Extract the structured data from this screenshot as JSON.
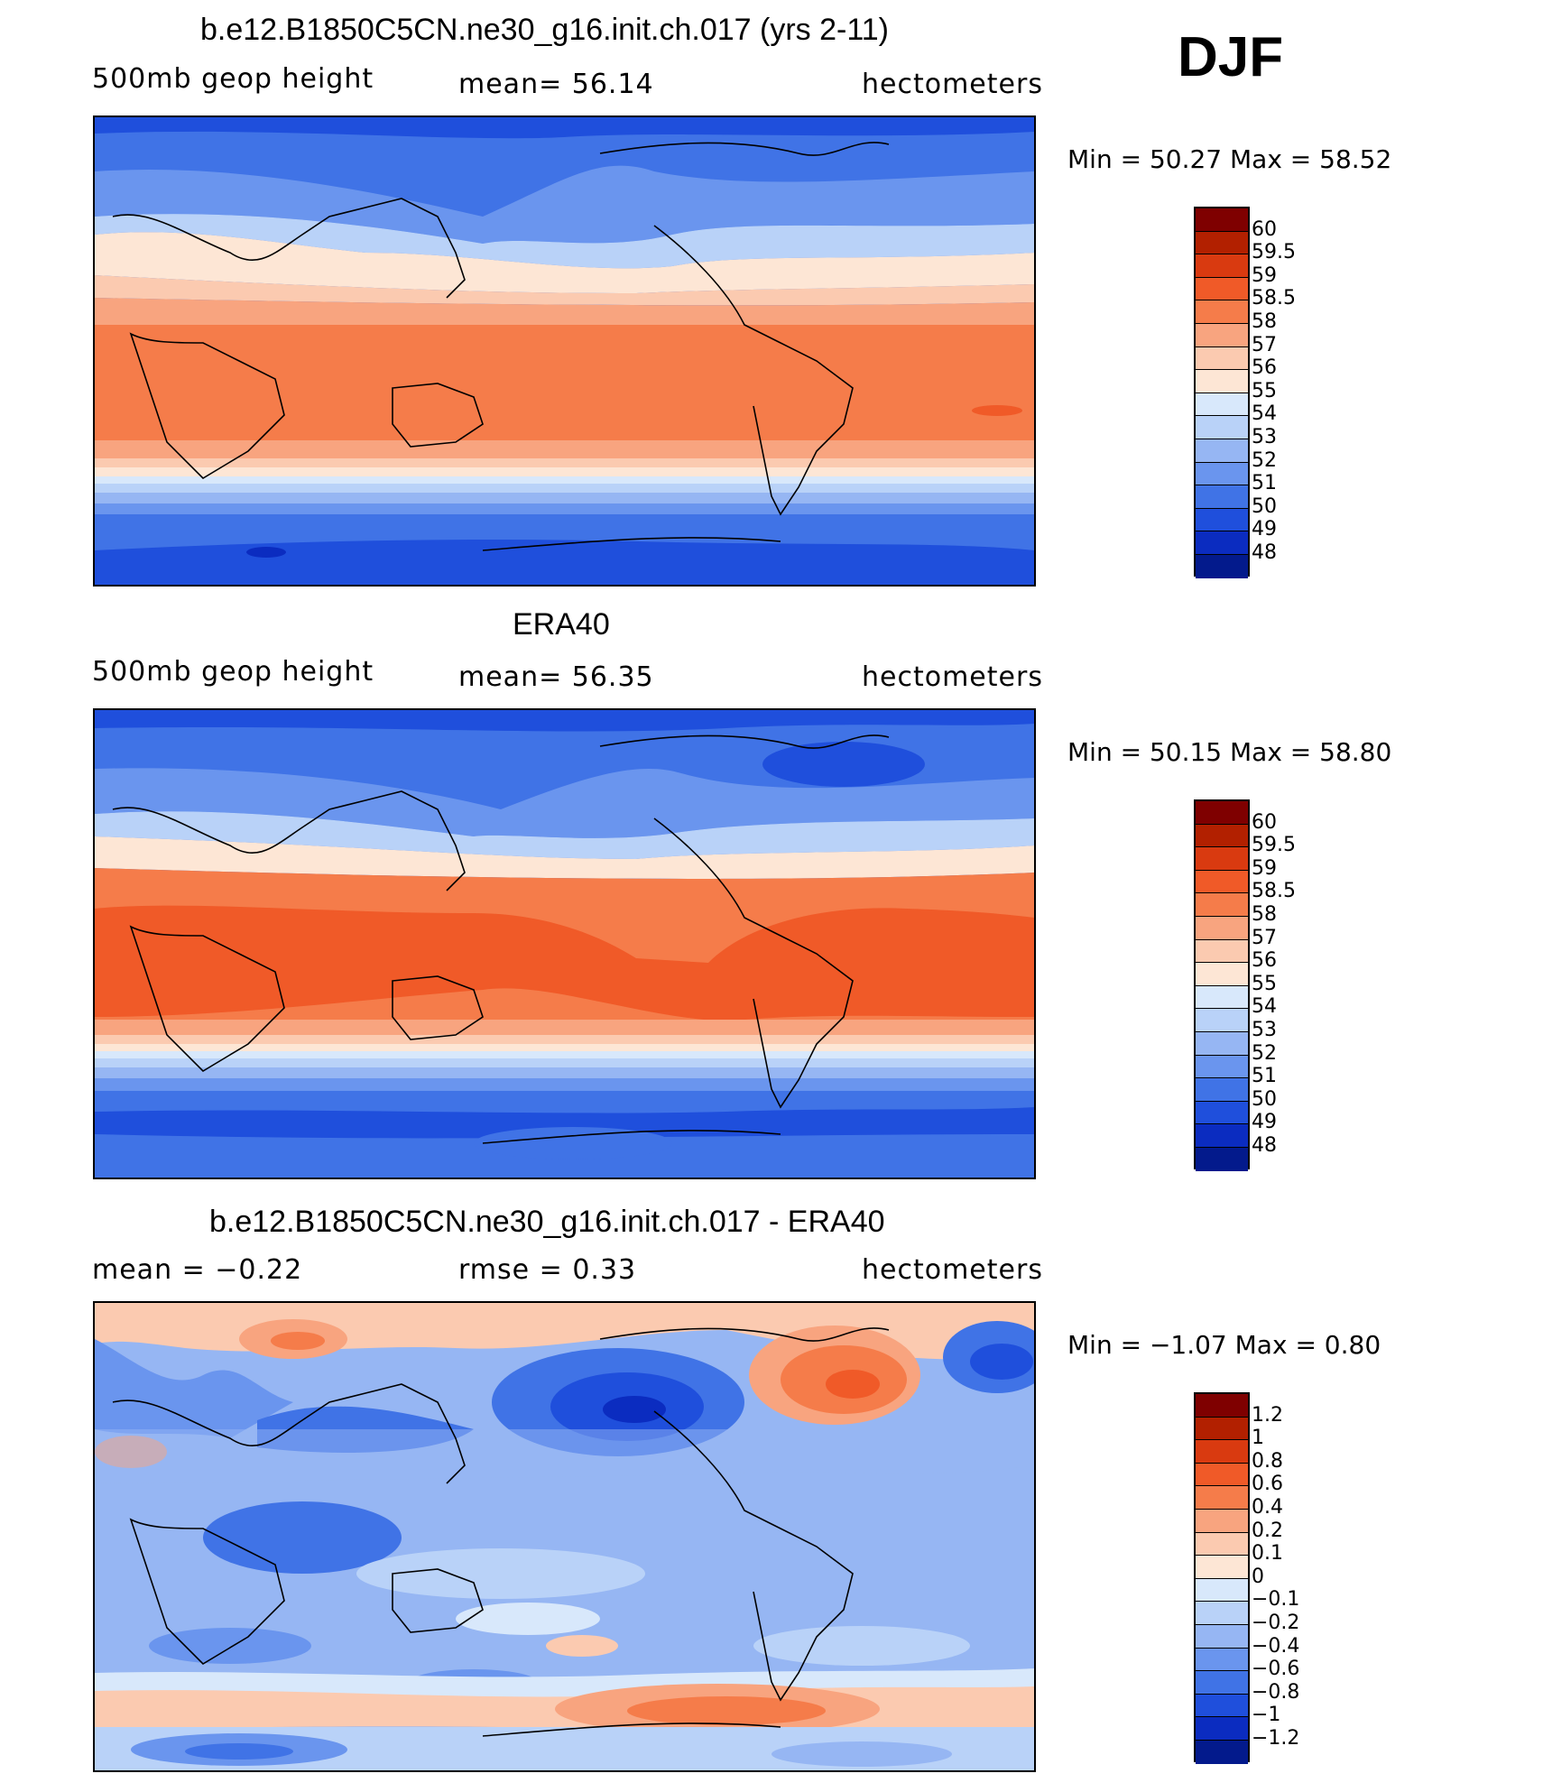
{
  "season": "DJF",
  "colors": {
    "ramp_red": [
      "#7f0000",
      "#b22000",
      "#d93a10",
      "#f05a28",
      "#f57c4a",
      "#f8a47f",
      "#fbcab0",
      "#fde6d5"
    ],
    "ramp_blue": [
      "#d8e8fb",
      "#b9d2f8",
      "#96b6f3",
      "#6a95ee",
      "#4073e6",
      "#1f4fdc",
      "#0b2cc0",
      "#031a8c"
    ]
  },
  "chart_data": [
    {
      "type": "heatmap",
      "title": "b.e12.B1850C5CN.ne30_g16.init.ch.017 (yrs 2-11)",
      "left_label": "500mb geop height",
      "center_label": "mean= 56.14",
      "right_label": "hectometers",
      "min_max": "Min = 50.27 Max = 58.52",
      "min": 50.27,
      "max": 58.52,
      "mean": 56.14,
      "colorbar_levels": [
        "60",
        "59.5",
        "59",
        "58.5",
        "58",
        "57",
        "56",
        "55",
        "54",
        "53",
        "52",
        "51",
        "50",
        "49",
        "48"
      ]
    },
    {
      "type": "heatmap",
      "title": "ERA40",
      "left_label": "500mb geop height",
      "center_label": "mean= 56.35",
      "right_label": "hectometers",
      "min_max": "Min = 50.15 Max = 58.80",
      "min": 50.15,
      "max": 58.8,
      "mean": 56.35,
      "colorbar_levels": [
        "60",
        "59.5",
        "59",
        "58.5",
        "58",
        "57",
        "56",
        "55",
        "54",
        "53",
        "52",
        "51",
        "50",
        "49",
        "48"
      ]
    },
    {
      "type": "heatmap",
      "title": "b.e12.B1850C5CN.ne30_g16.init.ch.017 - ERA40",
      "left_label": "mean = −0.22",
      "center_label": "rmse = 0.33",
      "right_label": "hectometers",
      "min_max": "Min = −1.07 Max = 0.80",
      "min": -1.07,
      "max": 0.8,
      "mean": -0.22,
      "rmse": 0.33,
      "colorbar_levels": [
        "1.2",
        "1",
        "0.8",
        "0.6",
        "0.4",
        "0.2",
        "0.1",
        "0",
        "−0.1",
        "−0.2",
        "−0.4",
        "−0.6",
        "−0.8",
        "−1",
        "−1.2"
      ]
    }
  ]
}
